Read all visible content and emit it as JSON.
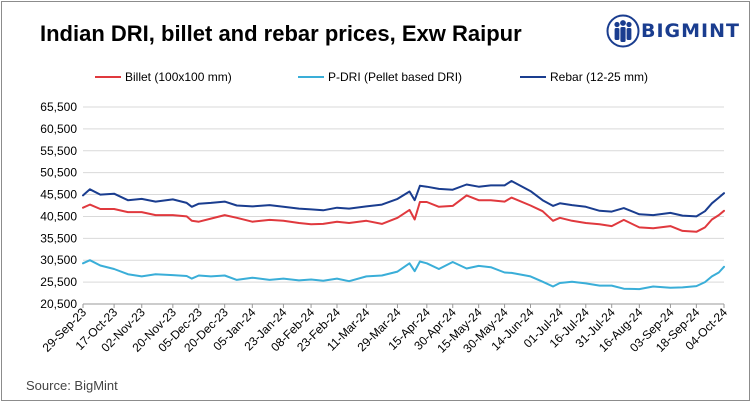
{
  "brand": {
    "logo_text": "BIGMINT",
    "logo_color": "#1a3d8f",
    "logo_icon": "people-logo-icon"
  },
  "source_note": "Source: BigMint",
  "chart_data": {
    "type": "line",
    "title": "Indian DRI, billet and rebar prices, Exw Raipur",
    "xlabel": "",
    "ylabel": "",
    "ylim": [
      20500,
      65500
    ],
    "yticks": [
      20500,
      25500,
      30500,
      35500,
      40500,
      45500,
      50500,
      55500,
      60500,
      65500
    ],
    "ytick_labels": [
      "20,500",
      "25,500",
      "30,500",
      "35,500",
      "40,500",
      "45,500",
      "50,500",
      "55,500",
      "60,500",
      "65,500"
    ],
    "grid": "horizontal",
    "legend_position": "top",
    "x_start": "2023-09-29",
    "x_end": "2024-10-04",
    "xticks": [
      "2023-09-29",
      "2023-10-17",
      "2023-11-02",
      "2023-11-20",
      "2023-12-05",
      "2023-12-20",
      "2024-01-05",
      "2024-01-23",
      "2024-02-08",
      "2024-02-23",
      "2024-03-11",
      "2024-03-29",
      "2024-04-15",
      "2024-04-30",
      "2024-05-15",
      "2024-05-30",
      "2024-06-14",
      "2024-07-01",
      "2024-07-16",
      "2024-07-31",
      "2024-08-16",
      "2024-09-03",
      "2024-09-18",
      "2024-10-04"
    ],
    "xtick_labels": [
      "29-Sep-23",
      "17-Oct-23",
      "02-Nov-23",
      "20-Nov-23",
      "05-Dec-23",
      "20-Dec-23",
      "05-Jan-24",
      "23-Jan-24",
      "08-Feb-24",
      "23-Feb-24",
      "11-Mar-24",
      "29-Mar-24",
      "15-Apr-24",
      "30-Apr-24",
      "15-May-24",
      "30-May-24",
      "14-Jun-24",
      "01-Jul-24",
      "16-Jul-24",
      "31-Jul-24",
      "16-Aug-24",
      "03-Sep-24",
      "18-Sep-24",
      "04-Oct-24"
    ],
    "series": [
      {
        "name": "Billet (100x100 mm)",
        "color": "#e0393e",
        "points": [
          [
            "2023-09-29",
            42500
          ],
          [
            "2023-10-03",
            43200
          ],
          [
            "2023-10-09",
            42200
          ],
          [
            "2023-10-17",
            42200
          ],
          [
            "2023-10-25",
            41500
          ],
          [
            "2023-11-02",
            41500
          ],
          [
            "2023-11-10",
            40800
          ],
          [
            "2023-11-20",
            40800
          ],
          [
            "2023-11-28",
            40500
          ],
          [
            "2023-12-01",
            39500
          ],
          [
            "2023-12-05",
            39300
          ],
          [
            "2023-12-12",
            40000
          ],
          [
            "2023-12-20",
            40800
          ],
          [
            "2023-12-27",
            40200
          ],
          [
            "2024-01-05",
            39300
          ],
          [
            "2024-01-15",
            39700
          ],
          [
            "2024-01-23",
            39500
          ],
          [
            "2024-02-01",
            39000
          ],
          [
            "2024-02-08",
            38700
          ],
          [
            "2024-02-15",
            38800
          ],
          [
            "2024-02-23",
            39300
          ],
          [
            "2024-03-01",
            39000
          ],
          [
            "2024-03-11",
            39500
          ],
          [
            "2024-03-20",
            38800
          ],
          [
            "2024-03-29",
            40200
          ],
          [
            "2024-04-05",
            42000
          ],
          [
            "2024-04-08",
            39800
          ],
          [
            "2024-04-11",
            43800
          ],
          [
            "2024-04-15",
            43800
          ],
          [
            "2024-04-22",
            42700
          ],
          [
            "2024-04-30",
            42900
          ],
          [
            "2024-05-08",
            45300
          ],
          [
            "2024-05-15",
            44200
          ],
          [
            "2024-05-22",
            44200
          ],
          [
            "2024-05-30",
            43900
          ],
          [
            "2024-06-03",
            44800
          ],
          [
            "2024-06-14",
            43000
          ],
          [
            "2024-06-21",
            41700
          ],
          [
            "2024-06-27",
            39500
          ],
          [
            "2024-07-01",
            40200
          ],
          [
            "2024-07-08",
            39500
          ],
          [
            "2024-07-16",
            39000
          ],
          [
            "2024-07-24",
            38700
          ],
          [
            "2024-07-31",
            38300
          ],
          [
            "2024-08-07",
            39700
          ],
          [
            "2024-08-16",
            38000
          ],
          [
            "2024-08-24",
            37800
          ],
          [
            "2024-09-03",
            38300
          ],
          [
            "2024-09-10",
            37200
          ],
          [
            "2024-09-18",
            37000
          ],
          [
            "2024-09-23",
            38000
          ],
          [
            "2024-09-27",
            39800
          ],
          [
            "2024-10-01",
            40800
          ],
          [
            "2024-10-04",
            41800
          ]
        ]
      },
      {
        "name": "P-DRI (Pellet based DRI)",
        "color": "#3aaed8",
        "points": [
          [
            "2023-09-29",
            29800
          ],
          [
            "2023-10-03",
            30500
          ],
          [
            "2023-10-09",
            29300
          ],
          [
            "2023-10-17",
            28500
          ],
          [
            "2023-10-25",
            27300
          ],
          [
            "2023-11-02",
            26800
          ],
          [
            "2023-11-10",
            27300
          ],
          [
            "2023-11-20",
            27100
          ],
          [
            "2023-11-28",
            26900
          ],
          [
            "2023-12-01",
            26300
          ],
          [
            "2023-12-05",
            27000
          ],
          [
            "2023-12-12",
            26800
          ],
          [
            "2023-12-20",
            27000
          ],
          [
            "2023-12-27",
            26000
          ],
          [
            "2024-01-05",
            26500
          ],
          [
            "2024-01-15",
            26000
          ],
          [
            "2024-01-23",
            26300
          ],
          [
            "2024-02-01",
            25900
          ],
          [
            "2024-02-08",
            26100
          ],
          [
            "2024-02-15",
            25800
          ],
          [
            "2024-02-23",
            26300
          ],
          [
            "2024-03-01",
            25700
          ],
          [
            "2024-03-11",
            26800
          ],
          [
            "2024-03-20",
            27000
          ],
          [
            "2024-03-29",
            27900
          ],
          [
            "2024-04-05",
            29800
          ],
          [
            "2024-04-08",
            28000
          ],
          [
            "2024-04-11",
            30200
          ],
          [
            "2024-04-15",
            29800
          ],
          [
            "2024-04-22",
            28500
          ],
          [
            "2024-04-30",
            30100
          ],
          [
            "2024-05-08",
            28600
          ],
          [
            "2024-05-15",
            29200
          ],
          [
            "2024-05-22",
            28900
          ],
          [
            "2024-05-30",
            27700
          ],
          [
            "2024-06-03",
            27600
          ],
          [
            "2024-06-14",
            26800
          ],
          [
            "2024-06-21",
            25600
          ],
          [
            "2024-06-27",
            24500
          ],
          [
            "2024-07-01",
            25300
          ],
          [
            "2024-07-08",
            25600
          ],
          [
            "2024-07-16",
            25200
          ],
          [
            "2024-07-24",
            24700
          ],
          [
            "2024-07-31",
            24700
          ],
          [
            "2024-08-07",
            24000
          ],
          [
            "2024-08-16",
            23900
          ],
          [
            "2024-08-24",
            24500
          ],
          [
            "2024-09-03",
            24200
          ],
          [
            "2024-09-10",
            24300
          ],
          [
            "2024-09-18",
            24600
          ],
          [
            "2024-09-23",
            25500
          ],
          [
            "2024-09-27",
            26800
          ],
          [
            "2024-10-01",
            27700
          ],
          [
            "2024-10-04",
            29000
          ]
        ]
      },
      {
        "name": "Rebar (12-25 mm)",
        "color": "#1a3d8f",
        "points": [
          [
            "2023-09-29",
            45300
          ],
          [
            "2023-10-03",
            46700
          ],
          [
            "2023-10-09",
            45500
          ],
          [
            "2023-10-17",
            45700
          ],
          [
            "2023-10-25",
            44200
          ],
          [
            "2023-11-02",
            44500
          ],
          [
            "2023-11-10",
            43900
          ],
          [
            "2023-11-20",
            44400
          ],
          [
            "2023-11-28",
            43600
          ],
          [
            "2023-12-01",
            42700
          ],
          [
            "2023-12-05",
            43400
          ],
          [
            "2023-12-12",
            43600
          ],
          [
            "2023-12-20",
            43900
          ],
          [
            "2023-12-27",
            43000
          ],
          [
            "2024-01-05",
            42800
          ],
          [
            "2024-01-15",
            43100
          ],
          [
            "2024-01-23",
            42700
          ],
          [
            "2024-02-01",
            42300
          ],
          [
            "2024-02-08",
            42100
          ],
          [
            "2024-02-15",
            41900
          ],
          [
            "2024-02-23",
            42500
          ],
          [
            "2024-03-01",
            42300
          ],
          [
            "2024-03-11",
            42800
          ],
          [
            "2024-03-20",
            43200
          ],
          [
            "2024-03-29",
            44500
          ],
          [
            "2024-04-05",
            46200
          ],
          [
            "2024-04-08",
            44200
          ],
          [
            "2024-04-11",
            47500
          ],
          [
            "2024-04-15",
            47300
          ],
          [
            "2024-04-22",
            46800
          ],
          [
            "2024-04-30",
            46600
          ],
          [
            "2024-05-08",
            47800
          ],
          [
            "2024-05-15",
            47300
          ],
          [
            "2024-05-22",
            47600
          ],
          [
            "2024-05-30",
            47600
          ],
          [
            "2024-06-03",
            48600
          ],
          [
            "2024-06-14",
            46300
          ],
          [
            "2024-06-21",
            44200
          ],
          [
            "2024-06-27",
            42900
          ],
          [
            "2024-07-01",
            43500
          ],
          [
            "2024-07-08",
            43100
          ],
          [
            "2024-07-16",
            42700
          ],
          [
            "2024-07-24",
            41800
          ],
          [
            "2024-07-31",
            41600
          ],
          [
            "2024-08-07",
            42400
          ],
          [
            "2024-08-16",
            41000
          ],
          [
            "2024-08-24",
            40800
          ],
          [
            "2024-09-03",
            41300
          ],
          [
            "2024-09-10",
            40700
          ],
          [
            "2024-09-18",
            40500
          ],
          [
            "2024-09-23",
            41700
          ],
          [
            "2024-09-27",
            43500
          ],
          [
            "2024-10-01",
            44800
          ],
          [
            "2024-10-04",
            45800
          ]
        ]
      }
    ]
  }
}
